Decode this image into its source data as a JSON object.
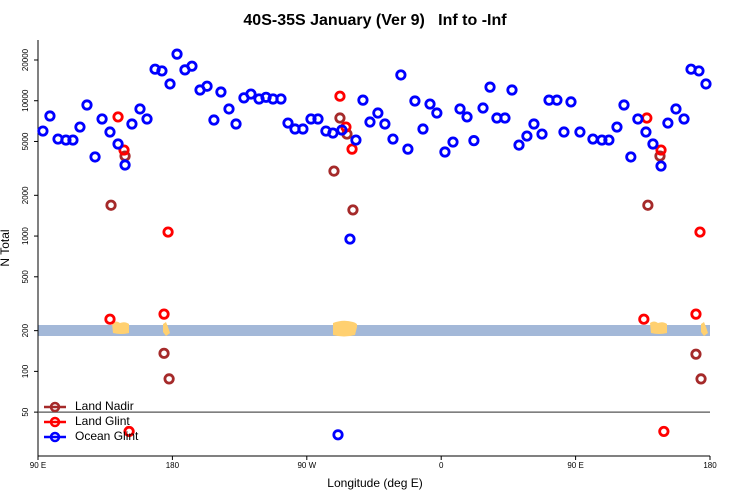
{
  "chart_data": {
    "type": "scatter",
    "title": "40S-35S January (Ver 9)   Inf to -Inf",
    "x_label": "Longitude (deg E)",
    "y_label": "N Total",
    "y_scale": "log",
    "legend": "bottom-left",
    "xlim": [
      90,
      540
    ],
    "xticks": [
      {
        "value": 90,
        "label": "90 E"
      },
      {
        "value": 180,
        "label": "180"
      },
      {
        "value": 270,
        "label": "90 W"
      },
      {
        "value": 360,
        "label": "0"
      },
      {
        "value": 450,
        "label": "90 E"
      },
      {
        "value": 540,
        "label": "180"
      }
    ],
    "ylim": [
      23.7,
      28100
    ],
    "yticks": [
      20000,
      10000,
      5000,
      2000,
      1000,
      500,
      200,
      100,
      50
    ],
    "series": [
      {
        "name": "Land Nadir",
        "color": "#a52a2a",
        "x": [
          138.9,
          148.3,
          174.4,
          177.8,
          288.2,
          292.2,
          296.9,
          300.9,
          498.4,
          506.5,
          530.6,
          534.0
        ],
        "values": [
          1690,
          3900,
          136,
          88,
          3020,
          7450,
          5670,
          1560,
          1690,
          3900,
          134,
          88
        ]
      },
      {
        "name": "Land Glint",
        "color": "#ff0000",
        "x": [
          143.6,
          147.6,
          151.0,
          174.4,
          177.1,
          292.2,
          296.2,
          300.3,
          497.7,
          507.2,
          509.1,
          530.6,
          533.3,
          138.2,
          495.7
        ],
        "values": [
          7590,
          4320,
          36,
          265,
          1070,
          10800,
          6390,
          4390,
          7450,
          4320,
          36,
          265,
          1070,
          243,
          243
        ]
      },
      {
        "name": "Ocean Glint",
        "color": "#0000ff",
        "x": [
          93.3,
          98.0,
          103.4,
          108.7,
          113.4,
          118.1,
          122.8,
          128.2,
          132.9,
          138.2,
          143.6,
          148.3,
          152.9,
          158.3,
          163.0,
          168.4,
          173.0,
          178.4,
          183.1,
          188.4,
          193.1,
          198.5,
          203.2,
          207.8,
          212.5,
          217.9,
          222.6,
          227.9,
          232.6,
          238.0,
          242.7,
          247.4,
          252.7,
          257.4,
          262.1,
          267.4,
          272.8,
          277.5,
          282.8,
          287.5,
          293.5,
          298.9,
          302.9,
          307.6,
          312.3,
          317.6,
          322.3,
          327.7,
          333.0,
          337.7,
          342.4,
          347.8,
          352.5,
          357.1,
          362.5,
          367.9,
          372.6,
          377.3,
          381.9,
          388.0,
          392.7,
          397.3,
          402.7,
          407.4,
          412.1,
          417.4,
          422.1,
          427.5,
          432.2,
          437.5,
          442.2,
          446.9,
          452.9,
          461.6,
          467.6,
          472.3,
          477.7,
          482.4,
          487.0,
          491.7,
          497.1,
          501.8,
          507.2,
          511.8,
          517.2,
          522.6,
          527.3,
          532.6,
          537.3,
          290.9
        ],
        "values": [
          5970,
          7710,
          5210,
          5120,
          5120,
          6390,
          9300,
          3840,
          7330,
          5870,
          4790,
          3350,
          6730,
          8690,
          7330,
          17100,
          16600,
          13300,
          22100,
          16900,
          18000,
          12000,
          12800,
          7200,
          11600,
          8690,
          6730,
          10500,
          11200,
          10300,
          10600,
          10300,
          10300,
          6840,
          6180,
          6180,
          7330,
          7330,
          5970,
          5770,
          6070,
          950,
          5120,
          10100,
          6960,
          8110,
          6730,
          5210,
          15500,
          4390,
          9950,
          6180,
          9450,
          8110,
          4180,
          4950,
          8690,
          7590,
          5070,
          8830,
          12600,
          7450,
          7450,
          12000,
          4700,
          5480,
          6730,
          5670,
          10100,
          10100,
          5870,
          9800,
          5870,
          5210,
          5120,
          5120,
          6390,
          9300,
          3840,
          7330,
          5870,
          4790,
          3290,
          6840,
          8690,
          7330,
          17100,
          16600,
          13300,
          34
        ]
      }
    ]
  }
}
